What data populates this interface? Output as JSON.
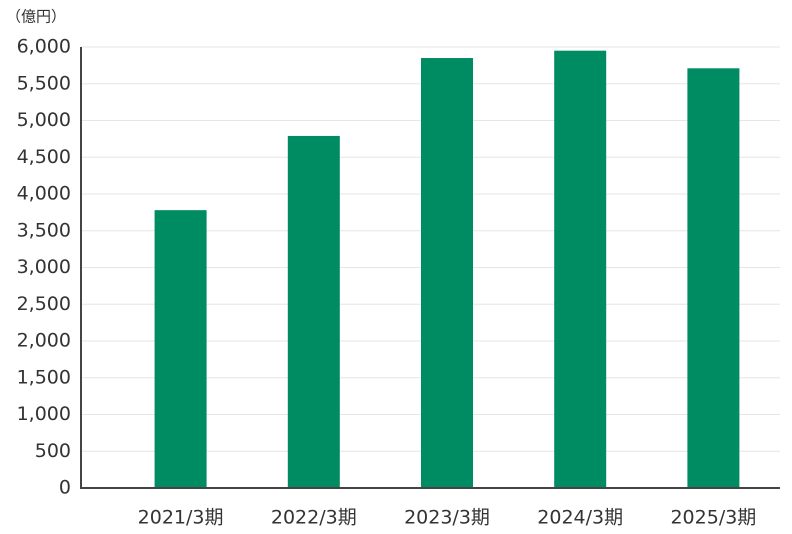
{
  "chart_data": {
    "type": "bar",
    "unit_label": "（億円）",
    "categories": [
      "2021/3期",
      "2022/3期",
      "2023/3期",
      "2024/3期",
      "2025/3期"
    ],
    "values": [
      3780,
      4790,
      5850,
      5950,
      5710
    ],
    "color": "#008c62",
    "ylim": [
      0,
      6000
    ],
    "yticks": [
      0,
      500,
      {
        "value": 1000,
        "label": "1,000"
      },
      {
        "value": 1500,
        "label": "1,500"
      },
      {
        "value": 2000,
        "label": "2,000"
      },
      {
        "value": 2500,
        "label": "2,500"
      },
      {
        "value": 3000,
        "label": "3,000"
      },
      {
        "value": 3500,
        "label": "3,500"
      },
      {
        "value": 4000,
        "label": "4,000"
      },
      {
        "value": 4500,
        "label": "4,500"
      },
      {
        "value": 5000,
        "label": "5,000"
      },
      {
        "value": 5500,
        "label": "5,500"
      },
      {
        "value": 6000,
        "label": "6,000"
      }
    ],
    "grid": true
  }
}
